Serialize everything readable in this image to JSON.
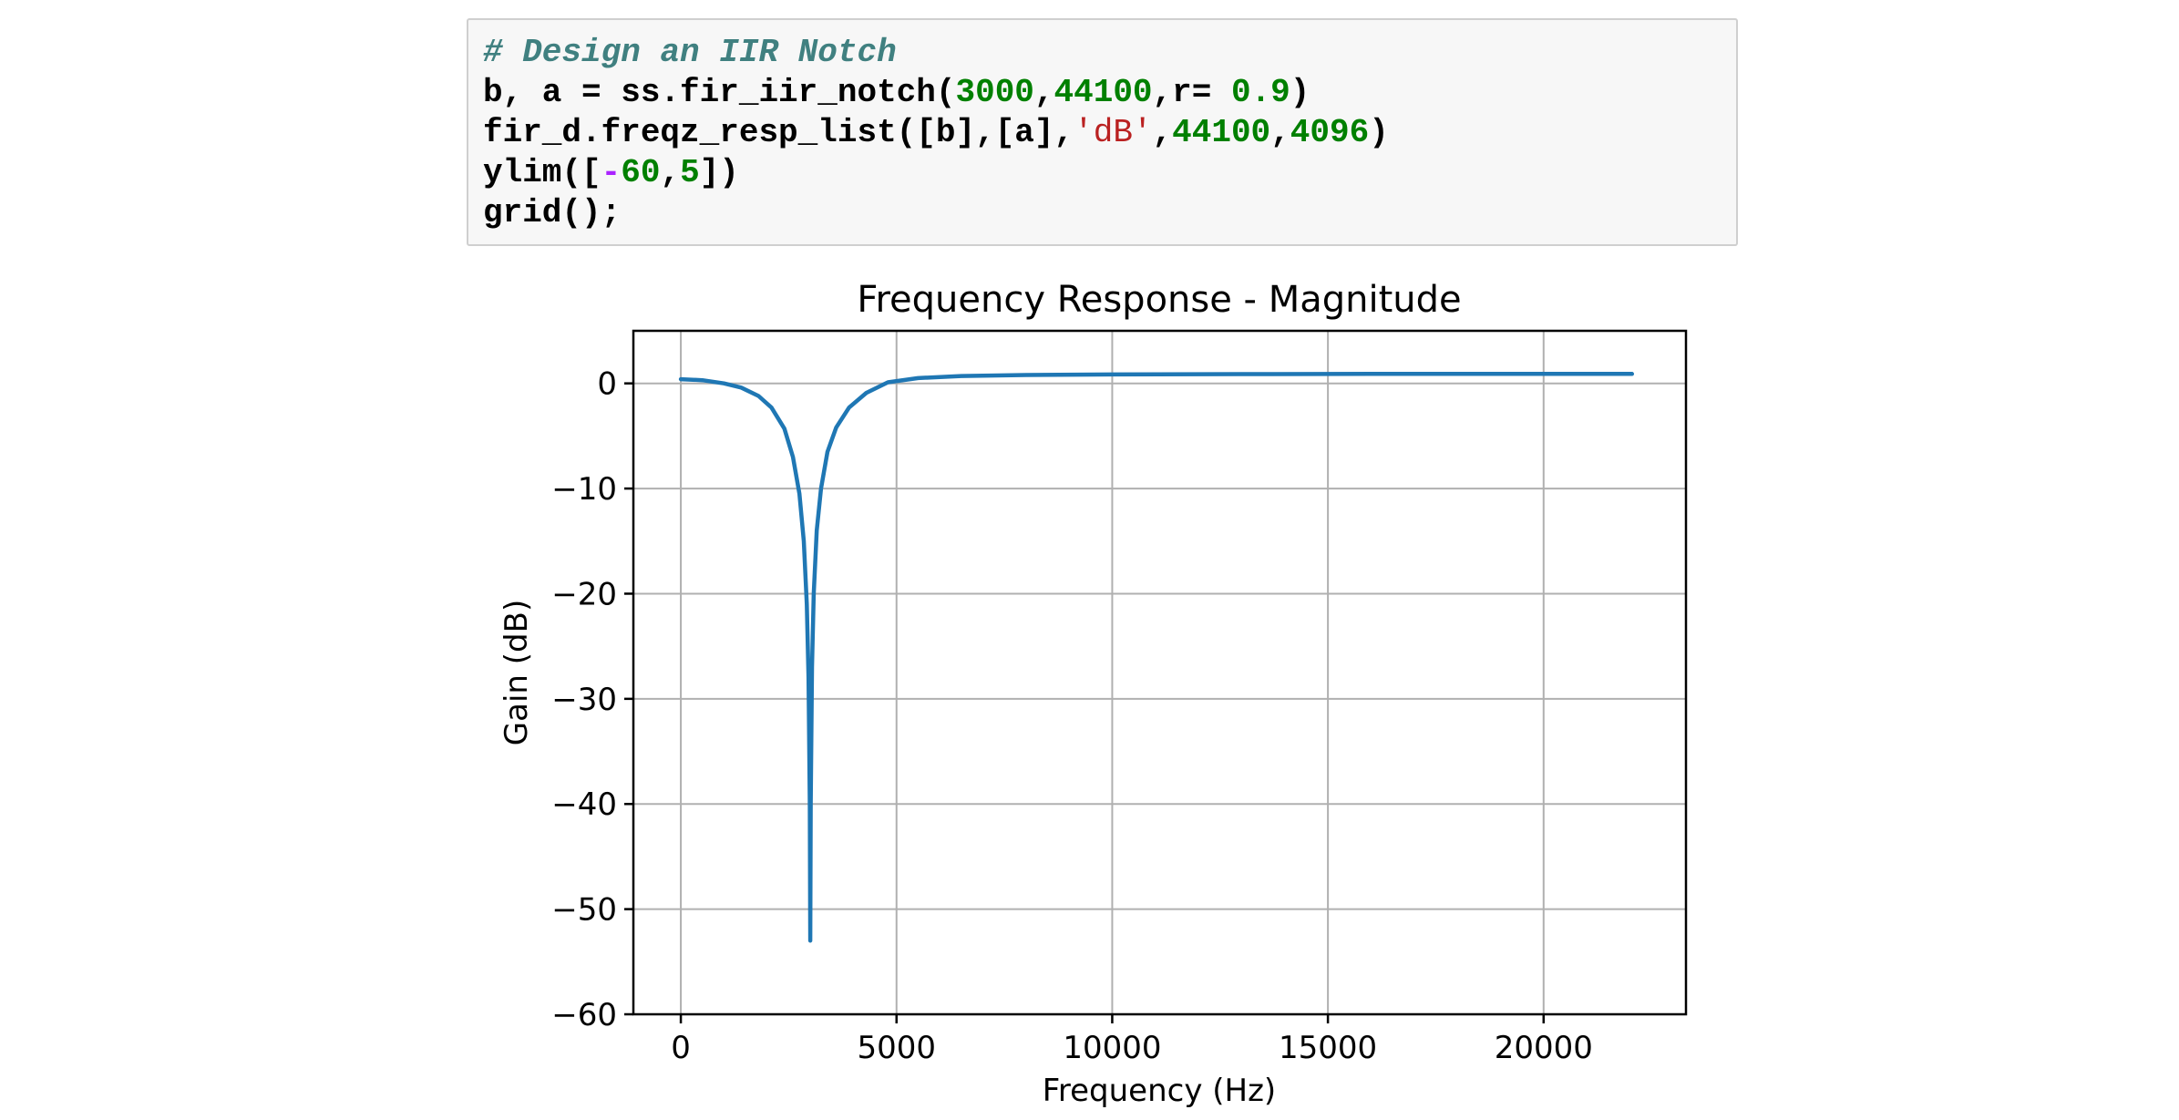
{
  "notebook": {
    "code_cell": {
      "lines": [
        [
          {
            "text": "# Design an IIR Notch",
            "type": "comment"
          }
        ],
        [
          {
            "text": "b, a = ss.fir_iir_notch(",
            "type": "plain"
          },
          {
            "text": "3000",
            "type": "num"
          },
          {
            "text": ",",
            "type": "plain"
          },
          {
            "text": "44100",
            "type": "num"
          },
          {
            "text": ",r= ",
            "type": "plain"
          },
          {
            "text": "0.9",
            "type": "num"
          },
          {
            "text": ")",
            "type": "plain"
          }
        ],
        [
          {
            "text": "fir_d.freqz_resp_list([b],[a],",
            "type": "plain"
          },
          {
            "text": "'dB'",
            "type": "str"
          },
          {
            "text": ",",
            "type": "plain"
          },
          {
            "text": "44100",
            "type": "num"
          },
          {
            "text": ",",
            "type": "plain"
          },
          {
            "text": "4096",
            "type": "num"
          },
          {
            "text": ")",
            "type": "plain"
          }
        ],
        [
          {
            "text": "ylim([",
            "type": "plain"
          },
          {
            "text": "-",
            "type": "op"
          },
          {
            "text": "60",
            "type": "num"
          },
          {
            "text": ",",
            "type": "plain"
          },
          {
            "text": "5",
            "type": "num"
          },
          {
            "text": "])",
            "type": "plain"
          }
        ],
        [
          {
            "text": "grid();",
            "type": "plain"
          }
        ]
      ]
    }
  },
  "chart_data": {
    "type": "line",
    "title": "Frequency Response - Magnitude",
    "xlabel": "Frequency (Hz)",
    "ylabel": "Gain (dB)",
    "xlim": [
      -1100,
      23300
    ],
    "ylim": [
      -60,
      5
    ],
    "xticks": [
      0,
      5000,
      10000,
      15000,
      20000
    ],
    "xtick_labels": [
      "0",
      "5000",
      "10000",
      "15000",
      "20000"
    ],
    "yticks": [
      0,
      -10,
      -20,
      -30,
      -40,
      -50,
      -60
    ],
    "ytick_labels": [
      "0",
      "−10",
      "−20",
      "−30",
      "−40",
      "−50",
      "−60"
    ],
    "grid": true,
    "line_color": "#1f77b4",
    "series": [
      {
        "x": [
          0,
          500,
          1000,
          1400,
          1800,
          2100,
          2400,
          2600,
          2750,
          2850,
          2920,
          2960,
          2990,
          3000,
          3010,
          3040,
          3080,
          3150,
          3250,
          3400,
          3600,
          3900,
          4300,
          4800,
          5500,
          6500,
          8000,
          10000,
          13000,
          16000,
          19000,
          22050
        ],
        "y": [
          0.4,
          0.3,
          0.0,
          -0.4,
          -1.2,
          -2.3,
          -4.3,
          -7.0,
          -10.5,
          -15.0,
          -21.0,
          -28.0,
          -40.0,
          -53.0,
          -40.0,
          -27.0,
          -20.0,
          -14.0,
          -10.0,
          -6.5,
          -4.2,
          -2.3,
          -0.9,
          0.1,
          0.5,
          0.7,
          0.8,
          0.85,
          0.88,
          0.9,
          0.9,
          0.9
        ]
      }
    ]
  }
}
